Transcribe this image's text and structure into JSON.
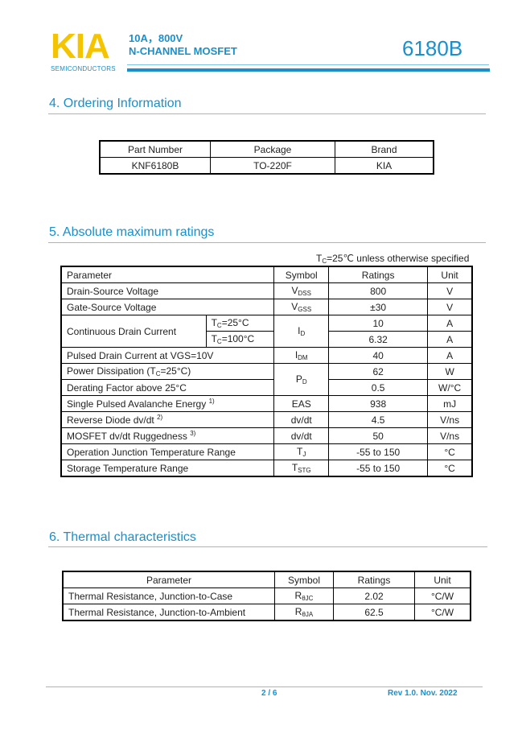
{
  "header": {
    "logo": "KIA",
    "logo_sub": "SEMICONDUCTORS",
    "spec_line1": "10A，800V",
    "spec_line2": "N-CHANNEL MOSFET",
    "model": "6180B",
    "colors": {
      "brand_yellow": "#f5c400",
      "accent_blue": "#1a8fcc"
    }
  },
  "ordering": {
    "title": "4. Ordering Information",
    "headers": [
      "Part Number",
      "Package",
      "Brand"
    ],
    "rows": [
      [
        "KNF6180B",
        "TO-220F",
        "KIA"
      ]
    ]
  },
  "absolute": {
    "title": "5. Absolute maximum ratings",
    "note_pre": "T",
    "note_sub": "C",
    "note_post": "=25℃  unless otherwise specified",
    "headers": [
      "Parameter",
      "Symbol",
      "Ratings",
      "Unit"
    ],
    "rows": [
      {
        "param": "Drain-Source Voltage",
        "sym": "V",
        "sym_sub": "DSS",
        "rating": "800",
        "unit": "V"
      },
      {
        "param": "Gate-Source Voltage",
        "sym": "V",
        "sym_sub": "GSS",
        "rating": "±30",
        "unit": "V"
      },
      {
        "param": "Continuous Drain Current",
        "cond1": "=25°C",
        "cond2": "=100°C",
        "cond_pre": "T",
        "cond_sub": "C",
        "sym": "I",
        "sym_sub": "D",
        "rating1": "10",
        "rating2": "6.32",
        "unit": "A"
      },
      {
        "param": "Pulsed Drain Current at VGS=10V",
        "sym": "I",
        "sym_sub": "DM",
        "rating": "40",
        "unit": "A"
      },
      {
        "param_pre": "Power Dissipation (T",
        "param_sub": "C",
        "param_post": "=25°C)",
        "param2": "Derating Factor above 25°C",
        "sym": "P",
        "sym_sub": "D",
        "rating1": "62",
        "rating2": "0.5",
        "unit1": "W",
        "unit2": "W/°C"
      },
      {
        "param": "Single Pulsed Avalanche Energy",
        "note": "1)",
        "sym": "EAS",
        "rating": "938",
        "unit": "mJ"
      },
      {
        "param": "Reverse Diode dv/dt",
        "note": "2)",
        "sym": "dv/dt",
        "rating": "4.5",
        "unit": "V/ns"
      },
      {
        "param": "MOSFET dv/dt Ruggedness",
        "note": "3)",
        "sym": "dv/dt",
        "rating": "50",
        "unit": "V/ns"
      },
      {
        "param": "Operation Junction Temperature Range",
        "sym": "T",
        "sym_sub": "J",
        "rating": "-55 to 150",
        "unit": "°C"
      },
      {
        "param": "Storage Temperature Range",
        "sym": "T",
        "sym_sub": "STG",
        "rating": "-55 to 150",
        "unit": "°C"
      }
    ]
  },
  "thermal": {
    "title": "6. Thermal characteristics",
    "headers": [
      "Parameter",
      "Symbol",
      "Ratings",
      "Unit"
    ],
    "rows": [
      {
        "param": "Thermal Resistance, Junction-to-Case",
        "sym": "R",
        "sym_sub": "θJC",
        "rating": "2.02",
        "unit": "°C/W"
      },
      {
        "param": "Thermal Resistance, Junction-to-Ambient",
        "sym": "R",
        "sym_sub": "θJA",
        "rating": "62.5",
        "unit": "°C/W"
      }
    ]
  },
  "footer": {
    "page": "2 / 6",
    "revision": "Rev 1.0. Nov. 2022"
  }
}
